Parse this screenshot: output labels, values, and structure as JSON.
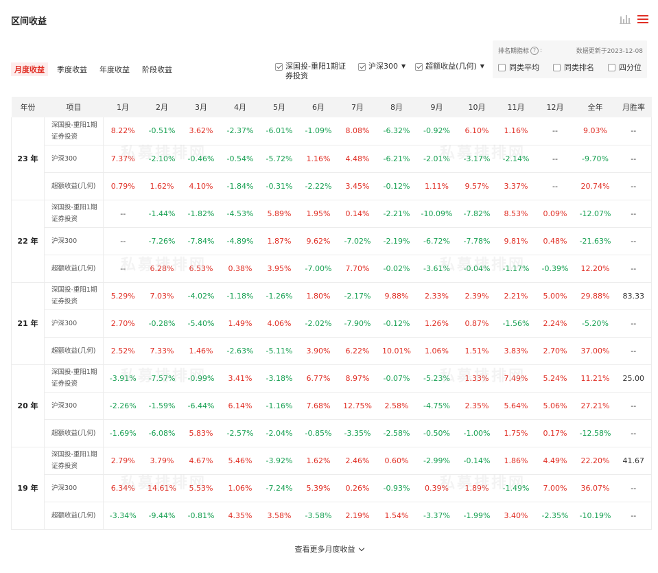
{
  "title": "区间收益",
  "tabs": [
    {
      "label": "月度收益",
      "active": true
    },
    {
      "label": "季度收益",
      "active": false
    },
    {
      "label": "年度收益",
      "active": false
    },
    {
      "label": "阶段收益",
      "active": false
    }
  ],
  "legend": [
    {
      "label": "深国投-重阳1期证券投资",
      "checked": true
    },
    {
      "label": "沪深300",
      "checked": true,
      "caret": "▼"
    },
    {
      "label": "超额收益(几何)",
      "checked": true,
      "caret": "▼"
    }
  ],
  "rank": {
    "label": "排名期指标",
    "help": "?",
    "colon": ":",
    "updated": "数据更新于2023-12-08",
    "options": [
      "同类平均",
      "同类排名",
      "四分位"
    ]
  },
  "watermark": "私募排排网",
  "table": {
    "headers": [
      "年份",
      "项目",
      "1月",
      "2月",
      "3月",
      "4月",
      "5月",
      "6月",
      "7月",
      "8月",
      "9月",
      "10月",
      "11月",
      "12月",
      "全年",
      "月胜率"
    ],
    "groups": [
      {
        "year": "23 年",
        "rows": [
          {
            "item": "深国投-重阳1期证券投资",
            "values": [
              "8.22%",
              "-0.51%",
              "3.62%",
              "-2.37%",
              "-6.01%",
              "-1.09%",
              "8.08%",
              "-6.32%",
              "-0.92%",
              "6.10%",
              "1.16%",
              "--",
              "9.03%"
            ],
            "winrate": "--"
          },
          {
            "item": "沪深300",
            "values": [
              "7.37%",
              "-2.10%",
              "-0.46%",
              "-0.54%",
              "-5.72%",
              "1.16%",
              "4.48%",
              "-6.21%",
              "-2.01%",
              "-3.17%",
              "-2.14%",
              "--",
              "-9.70%"
            ],
            "winrate": "--"
          },
          {
            "item": "超额收益(几何)",
            "values": [
              "0.79%",
              "1.62%",
              "4.10%",
              "-1.84%",
              "-0.31%",
              "-2.22%",
              "3.45%",
              "-0.12%",
              "1.11%",
              "9.57%",
              "3.37%",
              "--",
              "20.74%"
            ],
            "winrate": "--"
          }
        ]
      },
      {
        "year": "22 年",
        "rows": [
          {
            "item": "深国投-重阳1期证券投资",
            "values": [
              "--",
              "-1.44%",
              "-1.82%",
              "-4.53%",
              "5.89%",
              "1.95%",
              "0.14%",
              "-2.21%",
              "-10.09%",
              "-7.82%",
              "8.53%",
              "0.09%",
              "-12.07%"
            ],
            "winrate": "--"
          },
          {
            "item": "沪深300",
            "values": [
              "--",
              "-7.26%",
              "-7.84%",
              "-4.89%",
              "1.87%",
              "9.62%",
              "-7.02%",
              "-2.19%",
              "-6.72%",
              "-7.78%",
              "9.81%",
              "0.48%",
              "-21.63%"
            ],
            "winrate": "--"
          },
          {
            "item": "超额收益(几何)",
            "values": [
              "--",
              "6.28%",
              "6.53%",
              "0.38%",
              "3.95%",
              "-7.00%",
              "7.70%",
              "-0.02%",
              "-3.61%",
              "-0.04%",
              "-1.17%",
              "-0.39%",
              "12.20%"
            ],
            "winrate": "--"
          }
        ]
      },
      {
        "year": "21 年",
        "rows": [
          {
            "item": "深国投-重阳1期证券投资",
            "values": [
              "5.29%",
              "7.03%",
              "-4.02%",
              "-1.18%",
              "-1.26%",
              "1.80%",
              "-2.17%",
              "9.88%",
              "2.33%",
              "2.39%",
              "2.21%",
              "5.00%",
              "29.88%"
            ],
            "winrate": "83.33"
          },
          {
            "item": "沪深300",
            "values": [
              "2.70%",
              "-0.28%",
              "-5.40%",
              "1.49%",
              "4.06%",
              "-2.02%",
              "-7.90%",
              "-0.12%",
              "1.26%",
              "0.87%",
              "-1.56%",
              "2.24%",
              "-5.20%"
            ],
            "winrate": "--"
          },
          {
            "item": "超额收益(几何)",
            "values": [
              "2.52%",
              "7.33%",
              "1.46%",
              "-2.63%",
              "-5.11%",
              "3.90%",
              "6.22%",
              "10.01%",
              "1.06%",
              "1.51%",
              "3.83%",
              "2.70%",
              "37.00%"
            ],
            "winrate": "--"
          }
        ]
      },
      {
        "year": "20 年",
        "rows": [
          {
            "item": "深国投-重阳1期证券投资",
            "values": [
              "-3.91%",
              "-7.57%",
              "-0.99%",
              "3.41%",
              "-3.18%",
              "6.77%",
              "8.97%",
              "-0.07%",
              "-5.23%",
              "1.33%",
              "7.49%",
              "5.24%",
              "11.21%"
            ],
            "winrate": "25.00"
          },
          {
            "item": "沪深300",
            "values": [
              "-2.26%",
              "-1.59%",
              "-6.44%",
              "6.14%",
              "-1.16%",
              "7.68%",
              "12.75%",
              "2.58%",
              "-4.75%",
              "2.35%",
              "5.64%",
              "5.06%",
              "27.21%"
            ],
            "winrate": "--"
          },
          {
            "item": "超额收益(几何)",
            "values": [
              "-1.69%",
              "-6.08%",
              "5.83%",
              "-2.57%",
              "-2.04%",
              "-0.85%",
              "-3.35%",
              "-2.58%",
              "-0.50%",
              "-1.00%",
              "1.75%",
              "0.17%",
              "-12.58%"
            ],
            "winrate": "--"
          }
        ]
      },
      {
        "year": "19 年",
        "rows": [
          {
            "item": "深国投-重阳1期证券投资",
            "values": [
              "2.79%",
              "3.79%",
              "4.67%",
              "5.46%",
              "-3.92%",
              "1.62%",
              "2.46%",
              "0.60%",
              "-2.99%",
              "-0.14%",
              "1.86%",
              "4.49%",
              "22.20%"
            ],
            "winrate": "41.67"
          },
          {
            "item": "沪深300",
            "values": [
              "6.34%",
              "14.61%",
              "5.53%",
              "1.06%",
              "-7.24%",
              "5.39%",
              "0.26%",
              "-0.93%",
              "0.39%",
              "1.89%",
              "-1.49%",
              "7.00%",
              "36.07%"
            ],
            "winrate": "--"
          },
          {
            "item": "超额收益(几何)",
            "values": [
              "-3.34%",
              "-9.44%",
              "-0.81%",
              "4.35%",
              "3.58%",
              "-3.58%",
              "2.19%",
              "1.54%",
              "-3.37%",
              "-1.99%",
              "3.40%",
              "-2.35%",
              "-10.19%"
            ],
            "winrate": "--"
          }
        ]
      }
    ]
  },
  "more_label": "查看更多月度收益",
  "colors": {
    "positive": "#e02e24",
    "negative": "#17a052",
    "accent": "#e02e24"
  }
}
